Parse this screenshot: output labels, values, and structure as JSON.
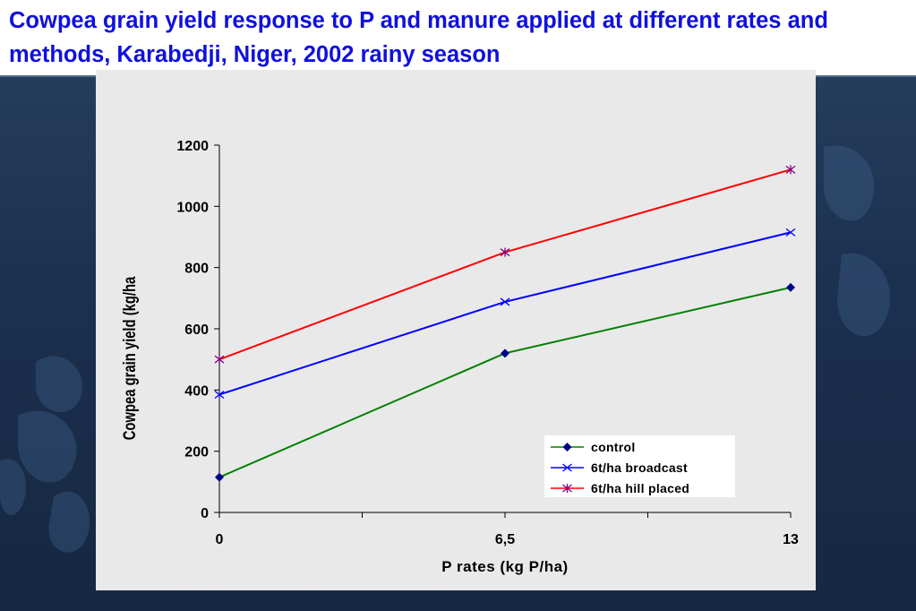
{
  "slide": {
    "title": "Cowpea grain yield response to P and manure applied at different rates and methods, Karabedji, Niger, 2002 rainy season",
    "background_color": "#1f3554",
    "title_color": "#1010dd",
    "panel_color": "#e9e9e9"
  },
  "chart_data": {
    "type": "line",
    "title": "",
    "xlabel": "P rates (kg P/ha)",
    "ylabel": "Cowpea  grain yield (kg/ha",
    "categories": [
      "0",
      "6,5",
      "13"
    ],
    "x": [
      0,
      6.5,
      13
    ],
    "ylim": [
      0,
      1200
    ],
    "yticks": [
      0,
      200,
      400,
      600,
      800,
      1000,
      1200
    ],
    "grid": false,
    "legend": "bottom-right",
    "series": [
      {
        "name": "control",
        "values": [
          115,
          520,
          735
        ],
        "color": "#008000",
        "marker": "diamond",
        "marker_color": "#00008b"
      },
      {
        "name": "6t/ha broadcast",
        "values": [
          385,
          688,
          915
        ],
        "color": "#0000ff",
        "marker": "x",
        "marker_color": "#0000ff"
      },
      {
        "name": "6t/ha hill placed",
        "values": [
          500,
          850,
          1120
        ],
        "color": "#ff0000",
        "marker": "star",
        "marker_color": "#800080"
      }
    ]
  }
}
